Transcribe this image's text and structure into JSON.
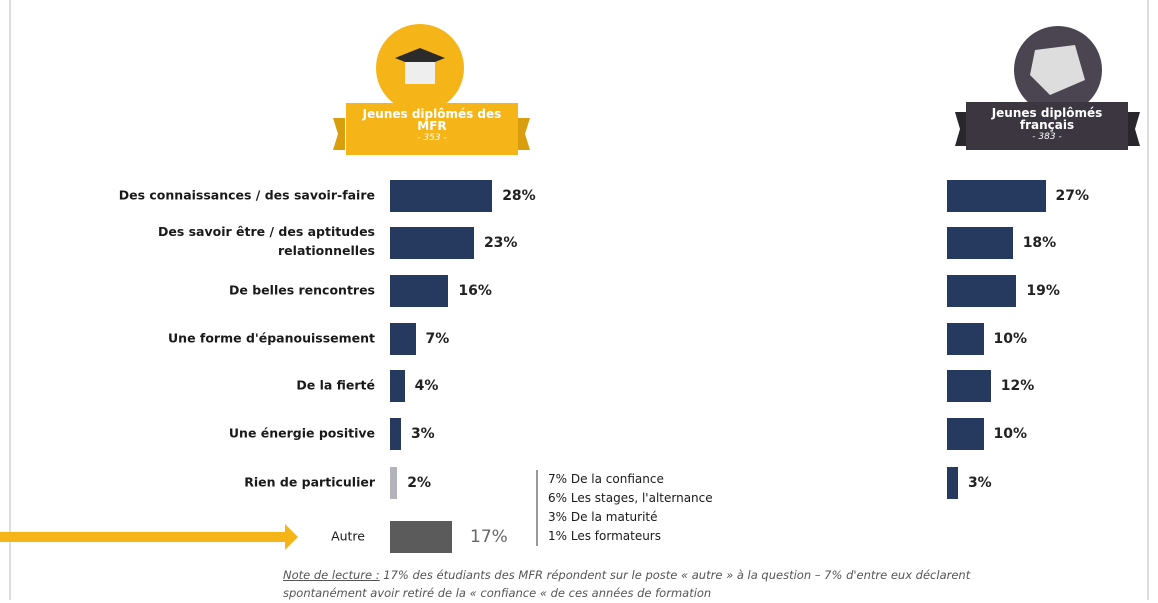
{
  "chart_data": {
    "type": "bar",
    "categories": [
      "Des connaissances / des savoir-faire",
      "Des savoir être / des aptitudes\nrelationnelles",
      "De belles rencontres",
      "Une forme d'épanouissement",
      "De la fierté",
      "Une énergie positive",
      "Rien de particulier",
      "Autre"
    ],
    "series": [
      {
        "name": "Jeunes diplômés des\nMFR",
        "sample": "- 353 -",
        "color": "#f5b519",
        "values": [
          28,
          23,
          16,
          7,
          4,
          3,
          2,
          17
        ],
        "value_labels": [
          "28%",
          "23%",
          "16%",
          "7%",
          "4%",
          "3%",
          "2%",
          "17%"
        ],
        "colors": [
          "#253a5e",
          "#253a5e",
          "#253a5e",
          "#253a5e",
          "#253a5e",
          "#253a5e",
          "#b3b3bb",
          "#5b5b5b"
        ]
      },
      {
        "name": "Jeunes diplômés\nfrançais",
        "sample": "- 383 -",
        "color": "#3b3640",
        "values": [
          27,
          18,
          19,
          10,
          12,
          10,
          3,
          null
        ],
        "value_labels": [
          "27%",
          "18%",
          "19%",
          "10%",
          "12%",
          "10%",
          "3%",
          null
        ],
        "colors": [
          "#253a5e",
          "#253a5e",
          "#253a5e",
          "#253a5e",
          "#253a5e",
          "#253a5e",
          "#253a5e",
          null
        ]
      }
    ],
    "annotations": [
      "7% De la confiance",
      "6% Les stages, l'alternance",
      "3% De la maturité",
      "1% Les formateurs"
    ],
    "note_lead": "Note de lecture :",
    "note": " 17% des étudiants des MFR répondent sur le poste « autre » à la question – 7% d'entre eux déclarent spontanément avoir retiré de la « confiance «  de ces années de formation"
  }
}
